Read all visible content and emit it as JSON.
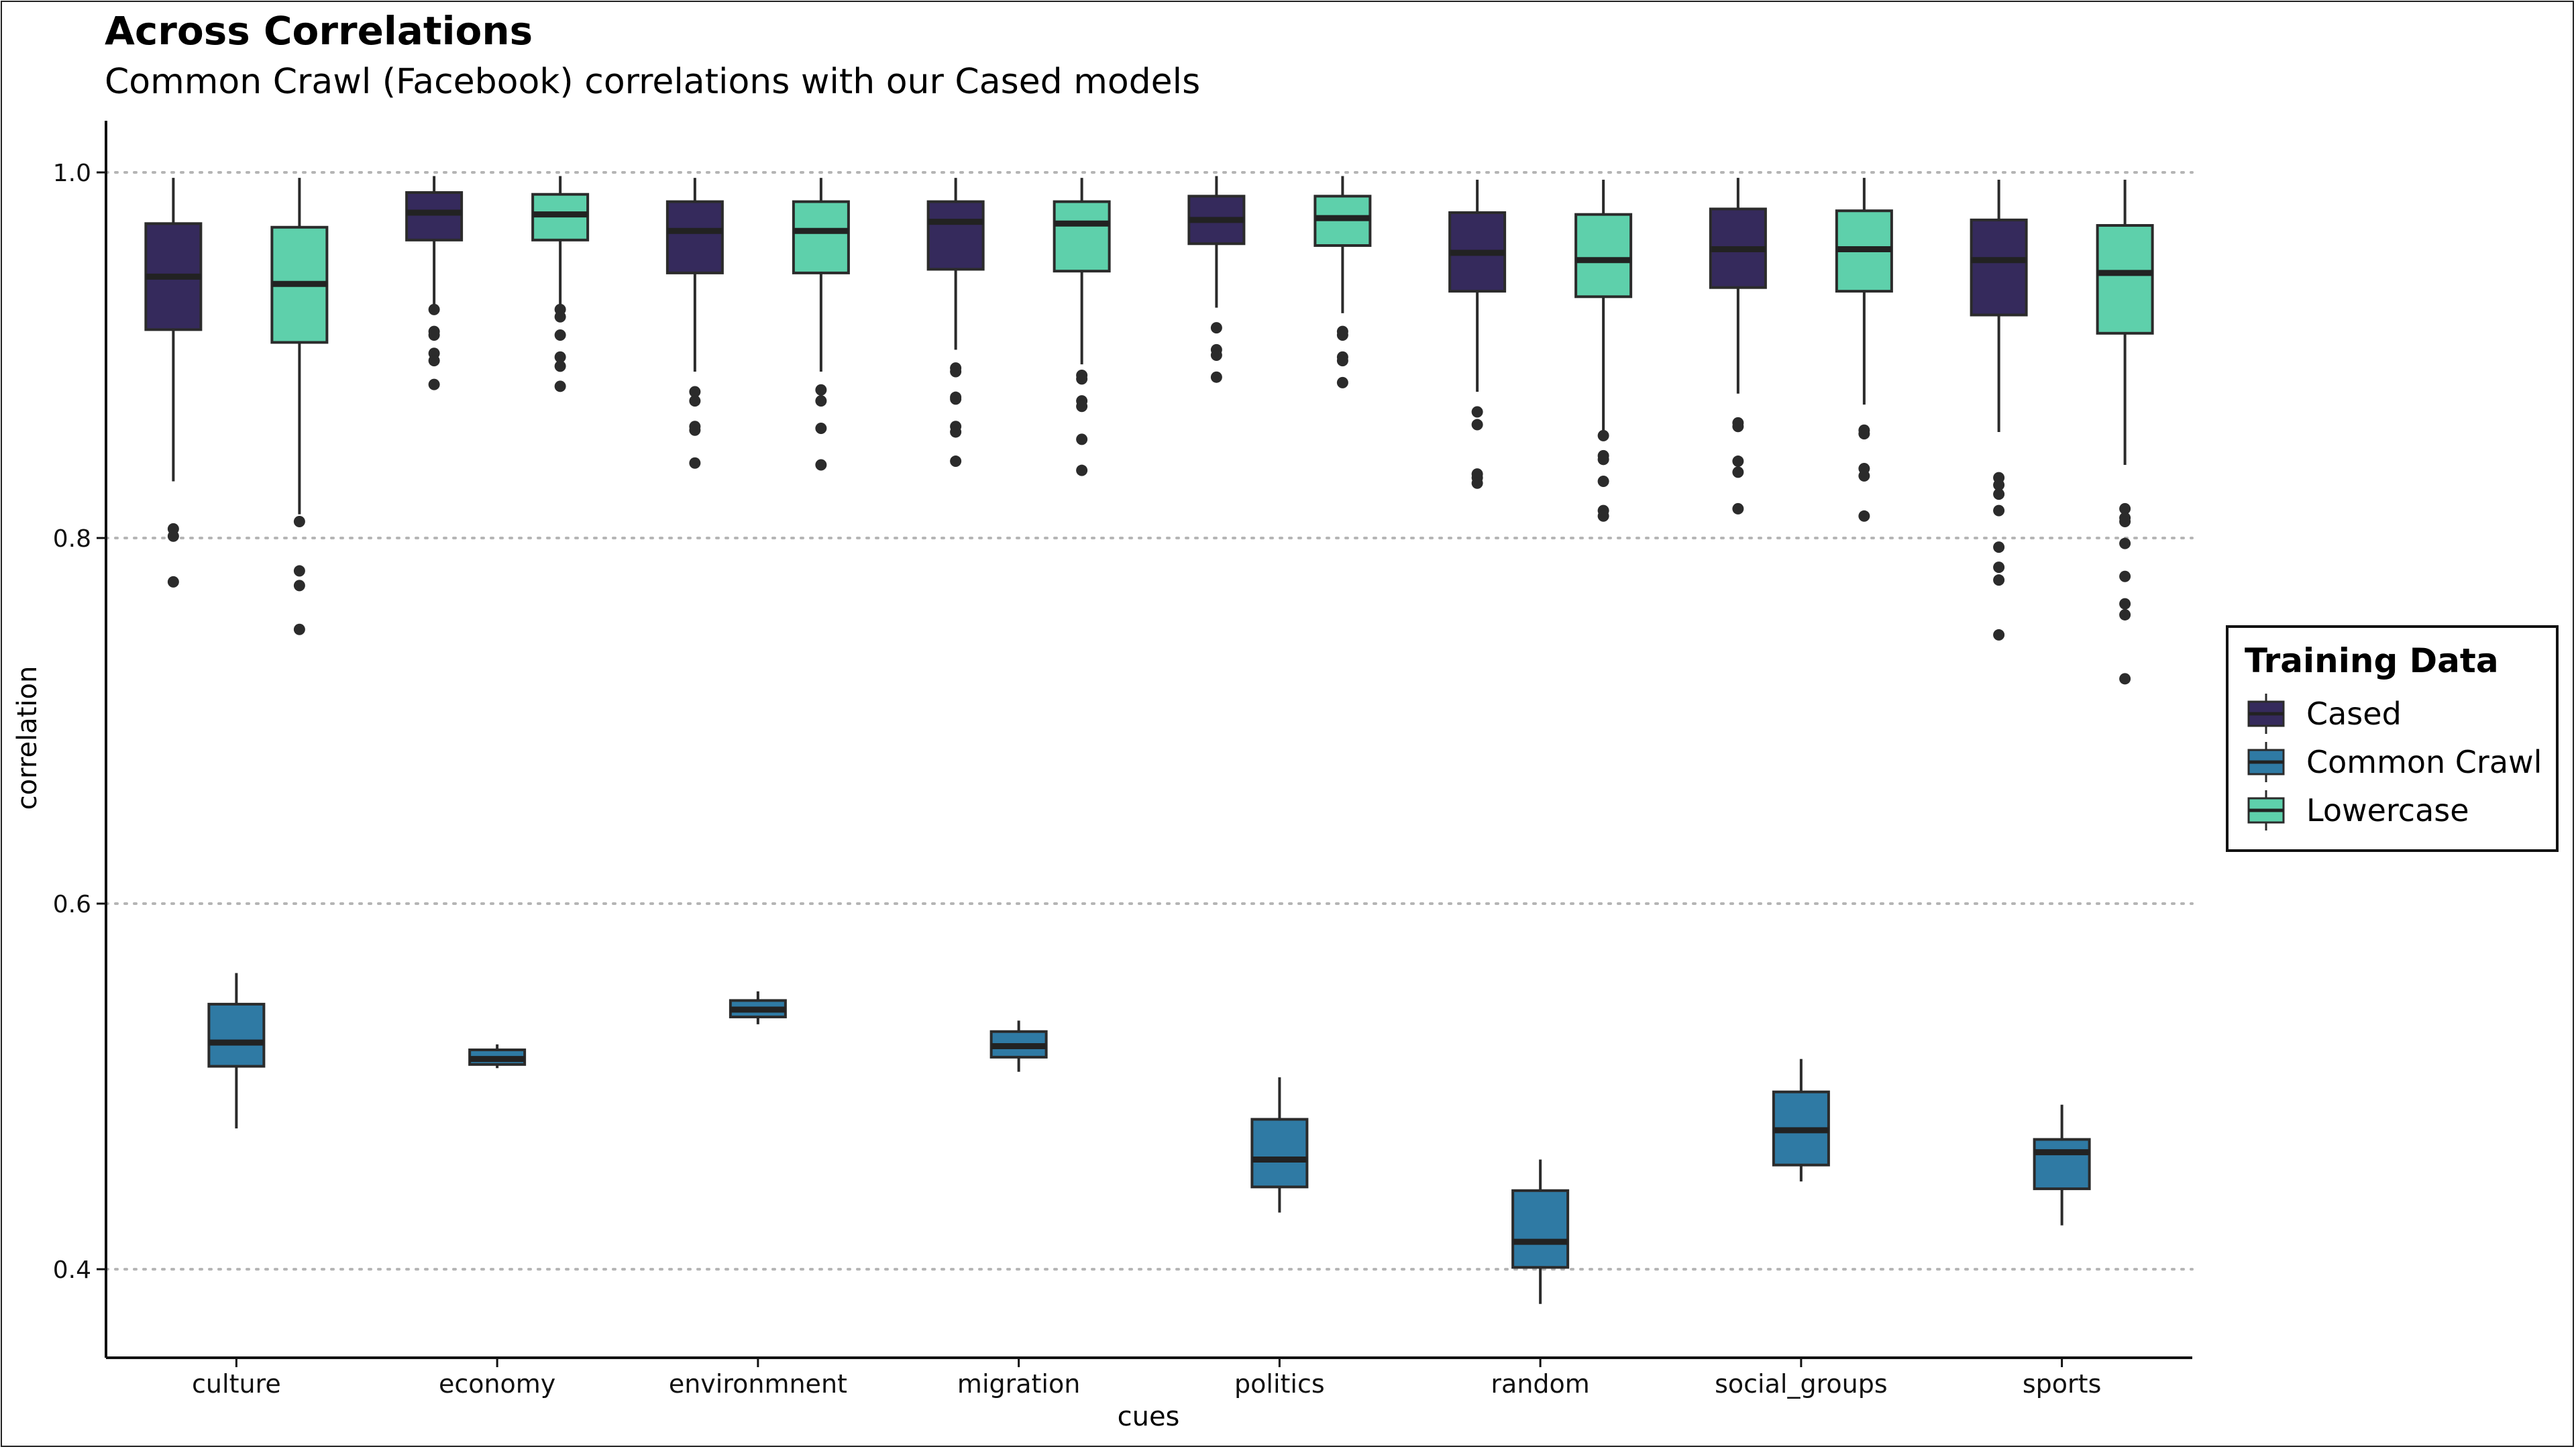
{
  "title": "Across Correlations",
  "subtitle": "Common Crawl (Facebook) correlations with our Cased models",
  "legend": {
    "title": "Training Data",
    "items": [
      {
        "label": "Cased",
        "color": "#352a5c"
      },
      {
        "label": "Common Crawl",
        "color": "#2f7aa4"
      },
      {
        "label": "Lowercase",
        "color": "#5ed0ab"
      }
    ]
  },
  "chart_data": {
    "type": "box",
    "xlabel": "cues",
    "ylabel": "correlation",
    "ylim": [
      0.35,
      1.03
    ],
    "yticks": [
      0.4,
      0.6,
      0.8,
      1.0
    ],
    "ytick_labels": [
      "0.4",
      "0.6",
      "0.8",
      "1.0"
    ],
    "grid": "horizontal dotted at major ticks",
    "legend_position": "right",
    "categories": [
      "culture",
      "economy",
      "environmnent",
      "migration",
      "politics",
      "random",
      "social_groups",
      "sports"
    ],
    "series": [
      {
        "name": "Cased",
        "color": "#352a5c",
        "boxes": [
          {
            "category": "culture",
            "low": 0.831,
            "q1": 0.914,
            "median": 0.943,
            "q3": 0.972,
            "high": 0.997,
            "outliers": [
              0.805,
              0.801,
              0.776
            ]
          },
          {
            "category": "economy",
            "low": 0.926,
            "q1": 0.963,
            "median": 0.978,
            "q3": 0.989,
            "high": 0.998,
            "outliers": [
              0.925,
              0.913,
              0.911,
              0.901,
              0.897,
              0.884
            ]
          },
          {
            "category": "environmnent",
            "low": 0.891,
            "q1": 0.945,
            "median": 0.968,
            "q3": 0.984,
            "high": 0.997,
            "outliers": [
              0.88,
              0.875,
              0.861,
              0.859,
              0.841
            ]
          },
          {
            "category": "migration",
            "low": 0.903,
            "q1": 0.947,
            "median": 0.973,
            "q3": 0.984,
            "high": 0.997,
            "outliers": [
              0.893,
              0.891,
              0.877,
              0.876,
              0.861,
              0.858,
              0.842
            ]
          },
          {
            "category": "politics",
            "low": 0.926,
            "q1": 0.961,
            "median": 0.974,
            "q3": 0.987,
            "high": 0.998,
            "outliers": [
              0.915,
              0.903,
              0.9,
              0.888
            ]
          },
          {
            "category": "random",
            "low": 0.88,
            "q1": 0.935,
            "median": 0.956,
            "q3": 0.978,
            "high": 0.996,
            "outliers": [
              0.869,
              0.862,
              0.835,
              0.833,
              0.83
            ]
          },
          {
            "category": "social_groups",
            "low": 0.879,
            "q1": 0.937,
            "median": 0.958,
            "q3": 0.98,
            "high": 0.997,
            "outliers": [
              0.863,
              0.861,
              0.842,
              0.836,
              0.816
            ]
          },
          {
            "category": "sports",
            "low": 0.858,
            "q1": 0.922,
            "median": 0.952,
            "q3": 0.974,
            "high": 0.996,
            "outliers": [
              0.833,
              0.829,
              0.824,
              0.815,
              0.795,
              0.784,
              0.777,
              0.747
            ]
          }
        ]
      },
      {
        "name": "Common Crawl",
        "color": "#2f7aa4",
        "boxes": [
          {
            "category": "culture",
            "low": 0.477,
            "q1": 0.511,
            "median": 0.524,
            "q3": 0.545,
            "high": 0.562,
            "outliers": []
          },
          {
            "category": "economy",
            "low": 0.51,
            "q1": 0.512,
            "median": 0.515,
            "q3": 0.52,
            "high": 0.523,
            "outliers": []
          },
          {
            "category": "environmnent",
            "low": 0.534,
            "q1": 0.538,
            "median": 0.542,
            "q3": 0.547,
            "high": 0.552,
            "outliers": []
          },
          {
            "category": "migration",
            "low": 0.508,
            "q1": 0.516,
            "median": 0.522,
            "q3": 0.53,
            "high": 0.536,
            "outliers": []
          },
          {
            "category": "politics",
            "low": 0.431,
            "q1": 0.445,
            "median": 0.46,
            "q3": 0.482,
            "high": 0.505,
            "outliers": []
          },
          {
            "category": "random",
            "low": 0.381,
            "q1": 0.401,
            "median": 0.415,
            "q3": 0.443,
            "high": 0.46,
            "outliers": []
          },
          {
            "category": "social_groups",
            "low": 0.448,
            "q1": 0.457,
            "median": 0.476,
            "q3": 0.497,
            "high": 0.515,
            "outliers": []
          },
          {
            "category": "sports",
            "low": 0.424,
            "q1": 0.444,
            "median": 0.464,
            "q3": 0.471,
            "high": 0.49,
            "outliers": []
          }
        ]
      },
      {
        "name": "Lowercase",
        "color": "#5ed0ab",
        "boxes": [
          {
            "category": "culture",
            "low": 0.813,
            "q1": 0.907,
            "median": 0.939,
            "q3": 0.97,
            "high": 0.997,
            "outliers": [
              0.809,
              0.782,
              0.774,
              0.75
            ]
          },
          {
            "category": "economy",
            "low": 0.927,
            "q1": 0.963,
            "median": 0.977,
            "q3": 0.988,
            "high": 0.998,
            "outliers": [
              0.925,
              0.921,
              0.911,
              0.899,
              0.894,
              0.883
            ]
          },
          {
            "category": "environmnent",
            "low": 0.891,
            "q1": 0.945,
            "median": 0.968,
            "q3": 0.984,
            "high": 0.997,
            "outliers": [
              0.881,
              0.875,
              0.86,
              0.84
            ]
          },
          {
            "category": "migration",
            "low": 0.895,
            "q1": 0.946,
            "median": 0.972,
            "q3": 0.984,
            "high": 0.997,
            "outliers": [
              0.889,
              0.887,
              0.875,
              0.872,
              0.854,
              0.837
            ]
          },
          {
            "category": "politics",
            "low": 0.923,
            "q1": 0.96,
            "median": 0.975,
            "q3": 0.987,
            "high": 0.998,
            "outliers": [
              0.913,
              0.911,
              0.899,
              0.897,
              0.885
            ]
          },
          {
            "category": "random",
            "low": 0.859,
            "q1": 0.932,
            "median": 0.952,
            "q3": 0.977,
            "high": 0.996,
            "outliers": [
              0.856,
              0.845,
              0.843,
              0.831,
              0.815,
              0.812
            ]
          },
          {
            "category": "social_groups",
            "low": 0.873,
            "q1": 0.935,
            "median": 0.958,
            "q3": 0.979,
            "high": 0.997,
            "outliers": [
              0.859,
              0.857,
              0.838,
              0.834,
              0.812
            ]
          },
          {
            "category": "sports",
            "low": 0.84,
            "q1": 0.912,
            "median": 0.945,
            "q3": 0.971,
            "high": 0.996,
            "outliers": [
              0.816,
              0.811,
              0.809,
              0.797,
              0.779,
              0.764,
              0.758,
              0.723
            ]
          }
        ]
      }
    ]
  }
}
